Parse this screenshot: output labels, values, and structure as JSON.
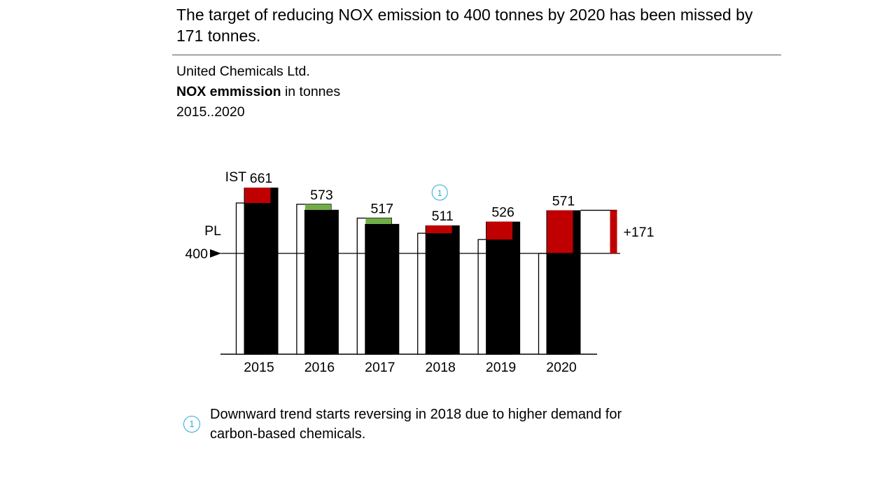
{
  "headline": "The target of reducing NOX emission to 400 tonnes by 2020 has been missed by 171 tonnes.",
  "subtitle": {
    "company": "United Chemicals Ltd.",
    "measure_bold": "NOX emmission",
    "measure_rest": " in tonnes",
    "period": "2015..2020"
  },
  "colors": {
    "actual": "#000000",
    "over_plan": "#c00000",
    "under_plan": "#70ad47",
    "note": "#29a8e0"
  },
  "chart_data": {
    "type": "bar",
    "categories": [
      "2015",
      "2016",
      "2017",
      "2018",
      "2019",
      "2020"
    ],
    "series": [
      {
        "name": "IST",
        "values": [
          661,
          573,
          517,
          511,
          526,
          571
        ]
      },
      {
        "name": "PL",
        "values": [
          600,
          595,
          540,
          480,
          455,
          400
        ]
      }
    ],
    "value_labels": [
      "661",
      "573",
      "517",
      "511",
      "526",
      "571"
    ],
    "series_labels": {
      "actual": "IST",
      "plan": "PL"
    },
    "reference_line": {
      "value": 400,
      "label": "400"
    },
    "delta": {
      "value": 171,
      "label": "+171"
    },
    "annotation": {
      "marker": "1",
      "category": "2018"
    },
    "ylim": [
      0,
      700
    ]
  },
  "footnote": {
    "marker": "1",
    "text": "Downward trend starts reversing in 2018 due to higher demand for carbon-based chemicals."
  }
}
